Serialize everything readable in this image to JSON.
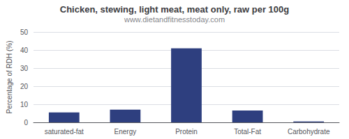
{
  "chart_data": {
    "type": "bar",
    "title": "Chicken, stewing, light meat, meat only, raw per 100g",
    "subtitle": "www.dietandfitnesstoday.com",
    "categories": [
      "saturated-fat",
      "Energy",
      "Protein",
      "Total-Fat",
      "Carbohydrate"
    ],
    "values": [
      5.5,
      7.0,
      41.0,
      6.5,
      0.5
    ],
    "color": "#2e3f7f",
    "ylabel": "Percentage of RDH (%)",
    "ylim": [
      0,
      50
    ],
    "yticks": [
      0,
      10,
      20,
      30,
      40,
      50
    ],
    "grid": true
  }
}
